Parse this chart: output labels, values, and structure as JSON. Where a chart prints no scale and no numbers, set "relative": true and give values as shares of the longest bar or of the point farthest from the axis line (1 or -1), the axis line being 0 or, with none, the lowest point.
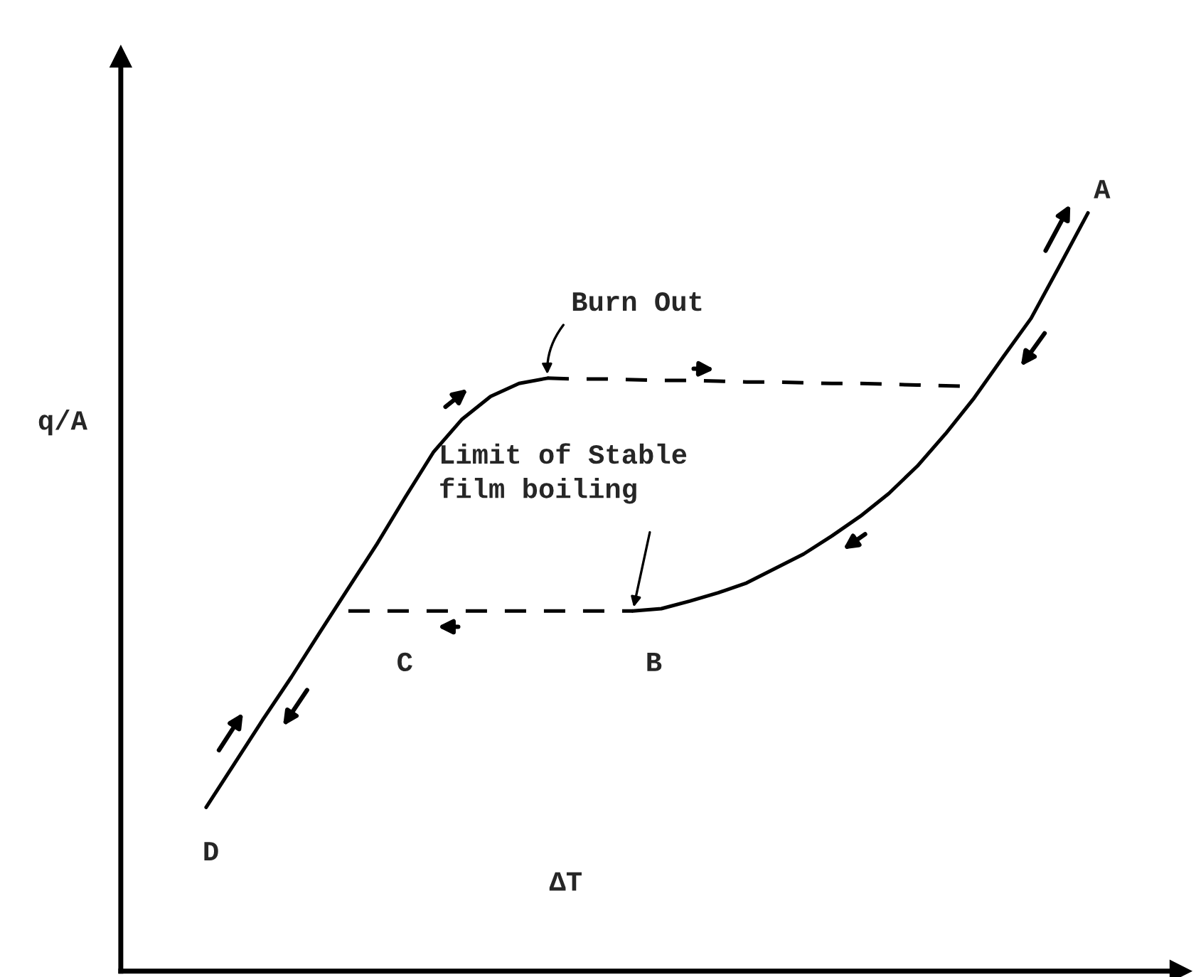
{
  "chart_data": {
    "type": "line",
    "relative": true,
    "xlabel": "ΔT",
    "ylabel": "q/A",
    "legend": false,
    "marker": "none",
    "categories": [
      null,
      null,
      null,
      null,
      null,
      null,
      null,
      null,
      null,
      null,
      null,
      null,
      null,
      null,
      null,
      null,
      null,
      null,
      null,
      null,
      null,
      null,
      null,
      null,
      null,
      null,
      null,
      null,
      null,
      null,
      null,
      null,
      null
    ],
    "series": [
      {
        "color": "#000000",
        "line_style": "solid",
        "values": [
          0.216,
          0.274,
          0.332,
          0.388,
          0.447,
          0.505,
          0.563,
          0.625,
          0.685,
          0.728,
          0.758,
          0.775,
          0.782,
          null,
          null,
          null,
          null,
          null,
          null,
          null,
          null,
          null,
          null,
          null,
          null,
          null,
          null,
          null,
          null,
          null,
          null,
          null,
          null
        ]
      },
      {
        "color": "#000000",
        "line_style": "dashed",
        "values": [
          null,
          null,
          null,
          null,
          null,
          null,
          null,
          null,
          null,
          null,
          null,
          null,
          0.782,
          0.781,
          0.781,
          0.78,
          0.779,
          0.779,
          0.778,
          0.777,
          0.777,
          0.776,
          0.775,
          0.775,
          0.774,
          0.773,
          0.772,
          0.771,
          null,
          null,
          null,
          null,
          null
        ]
      },
      {
        "color": "#000000",
        "line_style": "solid",
        "values": [
          null,
          null,
          null,
          null,
          null,
          null,
          null,
          null,
          null,
          null,
          null,
          null,
          null,
          null,
          null,
          0.475,
          0.478,
          0.488,
          0.499,
          0.512,
          0.531,
          0.55,
          0.574,
          0.6,
          0.63,
          0.666,
          0.709,
          0.756,
          0.809,
          0.861,
          0.93,
          1.0,
          null
        ]
      },
      {
        "color": "#000000",
        "line_style": "dashed",
        "values": [
          null,
          null,
          null,
          null,
          null,
          0.475,
          0.475,
          0.475,
          0.475,
          0.475,
          0.475,
          0.475,
          0.475,
          0.475,
          0.475,
          0.475,
          null,
          null,
          null,
          null,
          null,
          null,
          null,
          null,
          null,
          null,
          null,
          null,
          null,
          null,
          null,
          null,
          null
        ]
      }
    ],
    "annotations": [
      "Burn Out",
      "Limit of Stable\nfilm boiling",
      "A",
      "B",
      "C",
      "D"
    ]
  }
}
